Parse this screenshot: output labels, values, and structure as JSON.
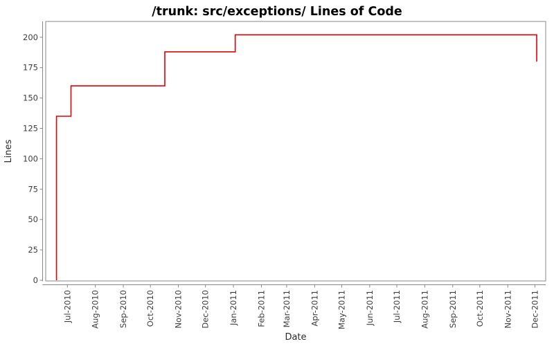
{
  "window": {
    "title": "/trunk: src/exceptions/ Lines of Code"
  },
  "chart_data": {
    "type": "line",
    "subtype": "step-after",
    "title": "/trunk: src/exceptions/ Lines of Code",
    "xlabel": "Date",
    "ylabel": "Lines",
    "grid": false,
    "legend": false,
    "background": "#ffffff",
    "line_color": "#e60000",
    "axis_color": "#878787",
    "tick_label_color": "#3d3d3d",
    "axis_label_color": "#2b2b2b",
    "title_color": "#000000",
    "ylim": [
      0,
      213
    ],
    "xlim": [
      "2010-06-07",
      "2011-12-13"
    ],
    "y_ticks": [
      0,
      25,
      50,
      75,
      100,
      125,
      150,
      175,
      200
    ],
    "x_ticks": [
      {
        "label": "Jul-2010",
        "date": "2010-07-01"
      },
      {
        "label": "Aug-2010",
        "date": "2010-08-01"
      },
      {
        "label": "Sep-2010",
        "date": "2010-09-01"
      },
      {
        "label": "Oct-2010",
        "date": "2010-10-01"
      },
      {
        "label": "Nov-2010",
        "date": "2010-11-01"
      },
      {
        "label": "Dec-2010",
        "date": "2010-12-01"
      },
      {
        "label": "Jan-2011",
        "date": "2011-01-01"
      },
      {
        "label": "Feb-2011",
        "date": "2011-02-01"
      },
      {
        "label": "Mar-2011",
        "date": "2011-03-01"
      },
      {
        "label": "Apr-2011",
        "date": "2011-04-01"
      },
      {
        "label": "May-2011",
        "date": "2011-05-01"
      },
      {
        "label": "Jun-2011",
        "date": "2011-06-01"
      },
      {
        "label": "Jul-2011",
        "date": "2011-07-01"
      },
      {
        "label": "Aug-2011",
        "date": "2011-08-01"
      },
      {
        "label": "Sep-2011",
        "date": "2011-09-01"
      },
      {
        "label": "Oct-2011",
        "date": "2011-10-01"
      },
      {
        "label": "Nov-2011",
        "date": "2011-11-01"
      },
      {
        "label": "Dec-2011",
        "date": "2011-12-01"
      }
    ],
    "start_value": 0,
    "points": [
      {
        "date": "2010-06-19",
        "value": 135
      },
      {
        "date": "2010-07-05",
        "value": 160
      },
      {
        "date": "2010-10-17",
        "value": 188
      },
      {
        "date": "2011-01-03",
        "value": 202
      },
      {
        "date": "2011-12-03",
        "value": 180
      }
    ]
  }
}
